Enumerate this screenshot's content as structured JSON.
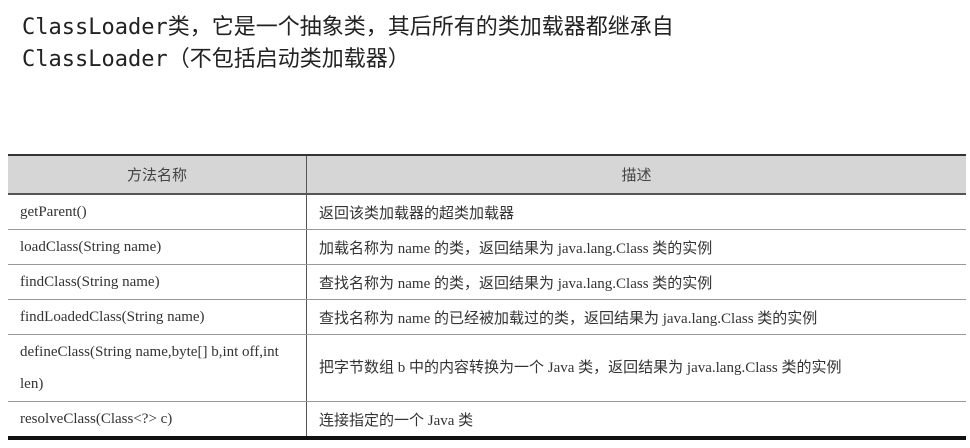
{
  "heading": {
    "line1": "ClassLoader类，它是一个抽象类，其后所有的类加载器都继承自",
    "line2": "ClassLoader（不包括启动类加载器）"
  },
  "table": {
    "headers": [
      "方法名称",
      "描述"
    ],
    "rows": [
      {
        "method": "getParent()",
        "desc": "返回该类加载器的超类加载器"
      },
      {
        "method": "loadClass(String name)",
        "desc": "加载名称为 name 的类，返回结果为 java.lang.Class 类的实例"
      },
      {
        "method": "findClass(String name)",
        "desc": "查找名称为 name 的类，返回结果为 java.lang.Class 类的实例"
      },
      {
        "method": "findLoadedClass(String name)",
        "desc": "查找名称为 name 的已经被加载过的类，返回结果为 java.lang.Class 类的实例"
      },
      {
        "method": "defineClass(String name,byte[] b,int off,int len)",
        "desc": "把字节数组 b 中的内容转换为一个 Java 类，返回结果为 java.lang.Class 类的实例"
      },
      {
        "method": "resolveClass(Class<?> c)",
        "desc": "连接指定的一个 Java 类"
      }
    ]
  }
}
